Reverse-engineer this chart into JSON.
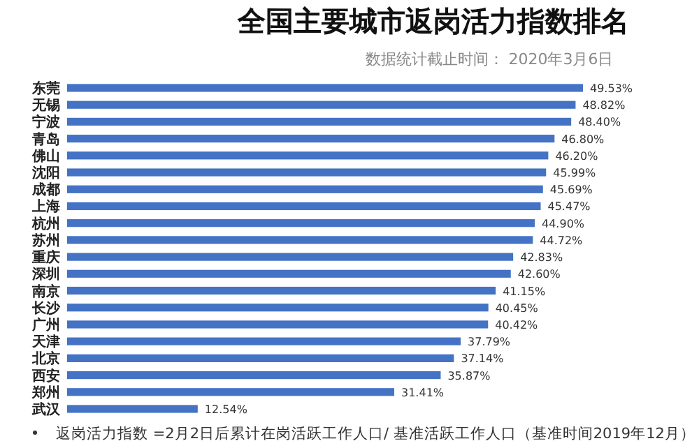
{
  "chart_data": {
    "type": "bar",
    "orientation": "horizontal",
    "title": "全国主要城市返岗活力指数排名",
    "subtitle": "数据统计截止时间： 2020年3月6日",
    "categories": [
      "东莞",
      "无锡",
      "宁波",
      "青岛",
      "佛山",
      "沈阳",
      "成都",
      "上海",
      "杭州",
      "苏州",
      "重庆",
      "深圳",
      "南京",
      "长沙",
      "广州",
      "天津",
      "北京",
      "西安",
      "郑州",
      "武汉"
    ],
    "values": [
      49.53,
      48.82,
      48.4,
      46.8,
      46.2,
      45.99,
      45.69,
      45.47,
      44.9,
      44.72,
      42.83,
      42.6,
      41.15,
      40.45,
      40.42,
      37.79,
      37.14,
      35.87,
      31.41,
      12.54
    ],
    "value_labels": [
      "49.53%",
      "48.82%",
      "48.40%",
      "46.80%",
      "46.20%",
      "45.99%",
      "45.69%",
      "45.47%",
      "44.90%",
      "44.72%",
      "42.83%",
      "42.60%",
      "41.15%",
      "40.45%",
      "40.42%",
      "37.79%",
      "37.14%",
      "35.87%",
      "31.41%",
      "12.54%"
    ],
    "color": "#4472c4",
    "annotations": [
      "返岗活力指数 =2月2日后累计在岗活跃工作人口/ 基准活跃工作人口（基准时间2019年12月）"
    ]
  }
}
